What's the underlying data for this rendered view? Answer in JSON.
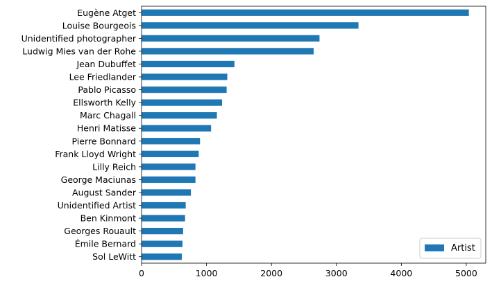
{
  "chart_data": {
    "type": "bar",
    "orientation": "horizontal",
    "categories": [
      "Eugène Atget",
      "Louise Bourgeois",
      "Unidentified photographer",
      "Ludwig Mies van der Rohe",
      "Jean Dubuffet",
      "Lee Friedlander",
      "Pablo Picasso",
      "Ellsworth Kelly",
      "Marc Chagall",
      "Henri Matisse",
      "Pierre Bonnard",
      "Frank Lloyd Wright",
      "Lilly Reich",
      "George Maciunas",
      "August Sander",
      "Unidentified Artist",
      "Ben Kinmont",
      "Georges Rouault",
      "Émile Bernard",
      "Sol LeWitt"
    ],
    "series": [
      {
        "name": "Artist",
        "color": "#1f77b4",
        "values": [
          5040,
          3340,
          2740,
          2650,
          1430,
          1320,
          1310,
          1240,
          1160,
          1070,
          900,
          880,
          830,
          830,
          760,
          680,
          670,
          640,
          630,
          620
        ]
      }
    ],
    "xticks": [
      "0",
      "1000",
      "2000",
      "3000",
      "4000",
      "5000"
    ],
    "xlim": [
      0,
      5300
    ],
    "title": "",
    "xlabel": "",
    "ylabel": "",
    "grid": false,
    "legend": {
      "position": "lower-right",
      "label": "Artist"
    }
  }
}
